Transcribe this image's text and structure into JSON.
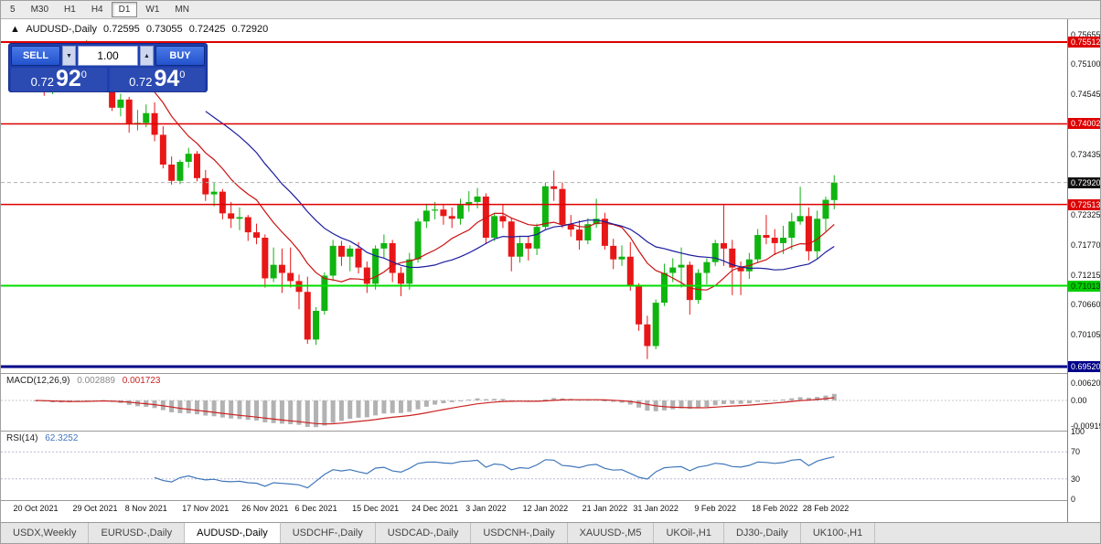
{
  "toolbar": {
    "timeframes": [
      {
        "label": "5",
        "active": false
      },
      {
        "label": "M30",
        "active": false
      },
      {
        "label": "H1",
        "active": false
      },
      {
        "label": "H4",
        "active": false
      },
      {
        "label": "D1",
        "active": true
      },
      {
        "label": "W1",
        "active": false
      },
      {
        "label": "MN",
        "active": false
      }
    ]
  },
  "header": {
    "symbol": "AUDUSD-,Daily",
    "open": "0.72595",
    "high": "0.73055",
    "low": "0.72425",
    "close": "0.72920"
  },
  "trade_panel": {
    "sell_label": "SELL",
    "buy_label": "BUY",
    "volume": "1.00",
    "spinner_down": "▼",
    "spinner_up": "▲",
    "sell_price": {
      "base": "0.72",
      "big": "92",
      "sup": "0"
    },
    "buy_price": {
      "base": "0.72",
      "big": "94",
      "sup": "0"
    }
  },
  "price_axis": {
    "ticks": [
      {
        "label": "0.75655",
        "value": 0.75655
      },
      {
        "label": "0.75100",
        "value": 0.751
      },
      {
        "label": "0.74545",
        "value": 0.74545
      },
      {
        "label": "0.73435",
        "value": 0.73435
      },
      {
        "label": "0.72325",
        "value": 0.72325
      },
      {
        "label": "0.71770",
        "value": 0.7177
      },
      {
        "label": "0.71215",
        "value": 0.71215
      },
      {
        "label": "0.70660",
        "value": 0.7066
      },
      {
        "label": "0.70105",
        "value": 0.70105
      }
    ],
    "badges": [
      {
        "label": "0.75512",
        "value": 0.75512,
        "bg": "#dd0000",
        "fg": "#ffffff"
      },
      {
        "label": "0.74002",
        "value": 0.74002,
        "bg": "#dd0000",
        "fg": "#ffffff"
      },
      {
        "label": "0.72920",
        "value": 0.7292,
        "bg": "#111111",
        "fg": "#ffffff"
      },
      {
        "label": "0.72513",
        "value": 0.72513,
        "bg": "#dd0000",
        "fg": "#ffffff"
      },
      {
        "label": "0.71013",
        "value": 0.71013,
        "bg": "#00cc00",
        "fg": "#003300"
      },
      {
        "label": "0.69520",
        "value": 0.6952,
        "bg": "#000089",
        "fg": "#ffffff"
      }
    ]
  },
  "chart_data": {
    "type": "candlestick",
    "title": "AUDUSD-,Daily",
    "y_range": [
      0.69419,
      0.75917
    ],
    "up_color": "#10b410",
    "down_color": "#e81717",
    "levels": [
      {
        "value": 0.75512,
        "color": "#dd0000",
        "width": 2
      },
      {
        "value": 0.74002,
        "color": "#dd0000",
        "width": 1.5
      },
      {
        "value": 0.72513,
        "color": "#dd0000",
        "width": 1.5
      },
      {
        "value": 0.7292,
        "color": "#b0b0b0",
        "width": 1,
        "dash": "4,3"
      },
      {
        "value": 0.71013,
        "color": "#00dd00",
        "width": 2
      },
      {
        "value": 0.6952,
        "color": "#000089",
        "width": 3
      }
    ],
    "x_ticks": [
      {
        "index": 0,
        "label": "20 Oct 2021"
      },
      {
        "index": 7,
        "label": "29 Oct 2021"
      },
      {
        "index": 13,
        "label": "8 Nov 2021"
      },
      {
        "index": 20,
        "label": "17 Nov 2021"
      },
      {
        "index": 27,
        "label": "26 Nov 2021"
      },
      {
        "index": 33,
        "label": "6 Dec 2021"
      },
      {
        "index": 40,
        "label": "15 Dec 2021"
      },
      {
        "index": 47,
        "label": "24 Dec 2021"
      },
      {
        "index": 53,
        "label": "3 Jan 2022"
      },
      {
        "index": 60,
        "label": "12 Jan 2022"
      },
      {
        "index": 67,
        "label": "21 Jan 2022"
      },
      {
        "index": 73,
        "label": "31 Jan 2022"
      },
      {
        "index": 80,
        "label": "9 Feb 2022"
      },
      {
        "index": 87,
        "label": "18 Feb 2022"
      },
      {
        "index": 93,
        "label": "28 Feb 2022"
      }
    ],
    "candles": [
      [
        0.7475,
        0.7525,
        0.7468,
        0.7515
      ],
      [
        0.7515,
        0.7522,
        0.7452,
        0.7465
      ],
      [
        0.7465,
        0.7495,
        0.7455,
        0.747
      ],
      [
        0.747,
        0.7502,
        0.7462,
        0.749
      ],
      [
        0.749,
        0.7536,
        0.7484,
        0.75
      ],
      [
        0.75,
        0.753,
        0.749,
        0.752
      ],
      [
        0.752,
        0.7555,
        0.7508,
        0.7545
      ],
      [
        0.7545,
        0.7552,
        0.7488,
        0.752
      ],
      [
        0.752,
        0.7536,
        0.7494,
        0.7525
      ],
      [
        0.7525,
        0.753,
        0.7424,
        0.743
      ],
      [
        0.743,
        0.7456,
        0.7414,
        0.7445
      ],
      [
        0.7445,
        0.745,
        0.7384,
        0.74
      ],
      [
        0.74,
        0.7426,
        0.7388,
        0.7402
      ],
      [
        0.7402,
        0.7436,
        0.7394,
        0.742
      ],
      [
        0.742,
        0.744,
        0.7368,
        0.738
      ],
      [
        0.738,
        0.7396,
        0.7318,
        0.7325
      ],
      [
        0.7325,
        0.734,
        0.7288,
        0.7295
      ],
      [
        0.7295,
        0.7334,
        0.7289,
        0.733
      ],
      [
        0.733,
        0.7356,
        0.7319,
        0.7345
      ],
      [
        0.7345,
        0.735,
        0.7294,
        0.73
      ],
      [
        0.73,
        0.7315,
        0.7258,
        0.727
      ],
      [
        0.727,
        0.7292,
        0.7248,
        0.7275
      ],
      [
        0.7275,
        0.728,
        0.7224,
        0.7235
      ],
      [
        0.7235,
        0.7256,
        0.7208,
        0.7225
      ],
      [
        0.7225,
        0.7246,
        0.7204,
        0.7228
      ],
      [
        0.7228,
        0.7232,
        0.7184,
        0.72
      ],
      [
        0.72,
        0.7216,
        0.7178,
        0.719
      ],
      [
        0.719,
        0.7196,
        0.7098,
        0.7115
      ],
      [
        0.7115,
        0.7172,
        0.7108,
        0.714
      ],
      [
        0.714,
        0.717,
        0.7088,
        0.7125
      ],
      [
        0.7125,
        0.7172,
        0.7098,
        0.711
      ],
      [
        0.711,
        0.7122,
        0.7058,
        0.709
      ],
      [
        0.709,
        0.7118,
        0.6994,
        0.7002
      ],
      [
        0.7002,
        0.7062,
        0.6992,
        0.7055
      ],
      [
        0.7055,
        0.7126,
        0.7048,
        0.712
      ],
      [
        0.712,
        0.7186,
        0.711,
        0.7175
      ],
      [
        0.7175,
        0.7184,
        0.7138,
        0.7155
      ],
      [
        0.7155,
        0.7176,
        0.7128,
        0.717
      ],
      [
        0.717,
        0.7182,
        0.7124,
        0.7135
      ],
      [
        0.7135,
        0.7146,
        0.7088,
        0.7105
      ],
      [
        0.7105,
        0.7176,
        0.7094,
        0.717
      ],
      [
        0.717,
        0.7196,
        0.7152,
        0.718
      ],
      [
        0.718,
        0.7186,
        0.7108,
        0.7125
      ],
      [
        0.7125,
        0.7136,
        0.7082,
        0.7105
      ],
      [
        0.7105,
        0.7162,
        0.7094,
        0.715
      ],
      [
        0.715,
        0.7226,
        0.7144,
        0.722
      ],
      [
        0.722,
        0.7252,
        0.7208,
        0.724
      ],
      [
        0.724,
        0.7256,
        0.7224,
        0.7242
      ],
      [
        0.7242,
        0.7252,
        0.7214,
        0.723
      ],
      [
        0.723,
        0.7246,
        0.7208,
        0.7225
      ],
      [
        0.7225,
        0.7262,
        0.7214,
        0.725
      ],
      [
        0.725,
        0.7276,
        0.7238,
        0.7256
      ],
      [
        0.7256,
        0.7282,
        0.7244,
        0.7266
      ],
      [
        0.7266,
        0.7272,
        0.7178,
        0.719
      ],
      [
        0.719,
        0.7236,
        0.7184,
        0.723
      ],
      [
        0.723,
        0.7252,
        0.7208,
        0.722
      ],
      [
        0.722,
        0.7226,
        0.7128,
        0.7155
      ],
      [
        0.7155,
        0.7192,
        0.7144,
        0.718
      ],
      [
        0.718,
        0.7192,
        0.7148,
        0.717
      ],
      [
        0.717,
        0.7216,
        0.7158,
        0.721
      ],
      [
        0.721,
        0.7292,
        0.7204,
        0.7285
      ],
      [
        0.7285,
        0.7314,
        0.7258,
        0.728
      ],
      [
        0.728,
        0.7292,
        0.7208,
        0.7215
      ],
      [
        0.7215,
        0.7232,
        0.7192,
        0.7205
      ],
      [
        0.7205,
        0.7222,
        0.7168,
        0.7185
      ],
      [
        0.7185,
        0.7226,
        0.7178,
        0.7215
      ],
      [
        0.7215,
        0.7262,
        0.7208,
        0.7225
      ],
      [
        0.7225,
        0.7236,
        0.7168,
        0.7175
      ],
      [
        0.7175,
        0.7188,
        0.7132,
        0.715
      ],
      [
        0.715,
        0.7176,
        0.7138,
        0.7155
      ],
      [
        0.7155,
        0.7182,
        0.7092,
        0.71
      ],
      [
        0.71,
        0.7106,
        0.7018,
        0.703
      ],
      [
        0.703,
        0.7046,
        0.6966,
        0.699
      ],
      [
        0.699,
        0.7076,
        0.6984,
        0.707
      ],
      [
        0.707,
        0.7142,
        0.7064,
        0.7125
      ],
      [
        0.7125,
        0.7152,
        0.7108,
        0.7135
      ],
      [
        0.7135,
        0.7172,
        0.7098,
        0.714
      ],
      [
        0.714,
        0.7146,
        0.7048,
        0.7075
      ],
      [
        0.7075,
        0.7132,
        0.7068,
        0.7125
      ],
      [
        0.7125,
        0.7152,
        0.7104,
        0.7145
      ],
      [
        0.7145,
        0.7186,
        0.7138,
        0.718
      ],
      [
        0.718,
        0.725,
        0.7138,
        0.717
      ],
      [
        0.717,
        0.7186,
        0.7084,
        0.7135
      ],
      [
        0.7135,
        0.7146,
        0.7084,
        0.7128
      ],
      [
        0.7128,
        0.7162,
        0.7114,
        0.715
      ],
      [
        0.715,
        0.7206,
        0.7144,
        0.7195
      ],
      [
        0.7195,
        0.7232,
        0.7178,
        0.719
      ],
      [
        0.719,
        0.7206,
        0.7158,
        0.718
      ],
      [
        0.718,
        0.7212,
        0.716,
        0.719
      ],
      [
        0.719,
        0.7236,
        0.7168,
        0.722
      ],
      [
        0.722,
        0.7284,
        0.7214,
        0.723
      ],
      [
        0.723,
        0.7246,
        0.7148,
        0.7165
      ],
      [
        0.7165,
        0.724,
        0.715,
        0.7225
      ],
      [
        0.7225,
        0.7266,
        0.7202,
        0.726
      ],
      [
        0.72595,
        0.73055,
        0.72425,
        0.7292
      ]
    ],
    "indicators": {
      "ma_fast": {
        "type": "SMA",
        "period": 10,
        "color": "#cc1111"
      },
      "ma_slow": {
        "type": "SMA",
        "period": 21,
        "color": "#1c1c9e"
      },
      "macd": {
        "label": "MACD(12,26,9)",
        "value_main": "0.002889",
        "value_signal": "0.001723",
        "fast": 12,
        "slow": 26,
        "signal": 9,
        "hist_color": "#b2b2b2",
        "signal_color": "#cc2222",
        "axis_ticks": [
          {
            "label": "0.00620",
            "value": 0.0062
          },
          {
            "label": "0.00",
            "value": 0
          },
          {
            "label": "-0.00919",
            "value": -0.00919
          }
        ]
      },
      "rsi": {
        "label": "RSI(14)",
        "value": "62.3252",
        "period": 14,
        "color": "#3f76b9",
        "levels": [
          70,
          30
        ],
        "axis_ticks": [
          {
            "label": "100",
            "value": 100
          },
          {
            "label": "70",
            "value": 70
          },
          {
            "label": "30",
            "value": 30
          },
          {
            "label": "0",
            "value": 0
          }
        ]
      }
    }
  },
  "tabs": [
    {
      "label": "USDX,Weekly",
      "active": false
    },
    {
      "label": "EURUSD-,Daily",
      "active": false
    },
    {
      "label": "AUDUSD-,Daily",
      "active": true
    },
    {
      "label": "USDCHF-,Daily",
      "active": false
    },
    {
      "label": "USDCAD-,Daily",
      "active": false
    },
    {
      "label": "USDCNH-,Daily",
      "active": false
    },
    {
      "label": "XAUUSD-,M5",
      "active": false
    },
    {
      "label": "UKOil-,H1",
      "active": false
    },
    {
      "label": "DJ30-,Daily",
      "active": false
    },
    {
      "label": "UK100-,H1",
      "active": false
    }
  ]
}
